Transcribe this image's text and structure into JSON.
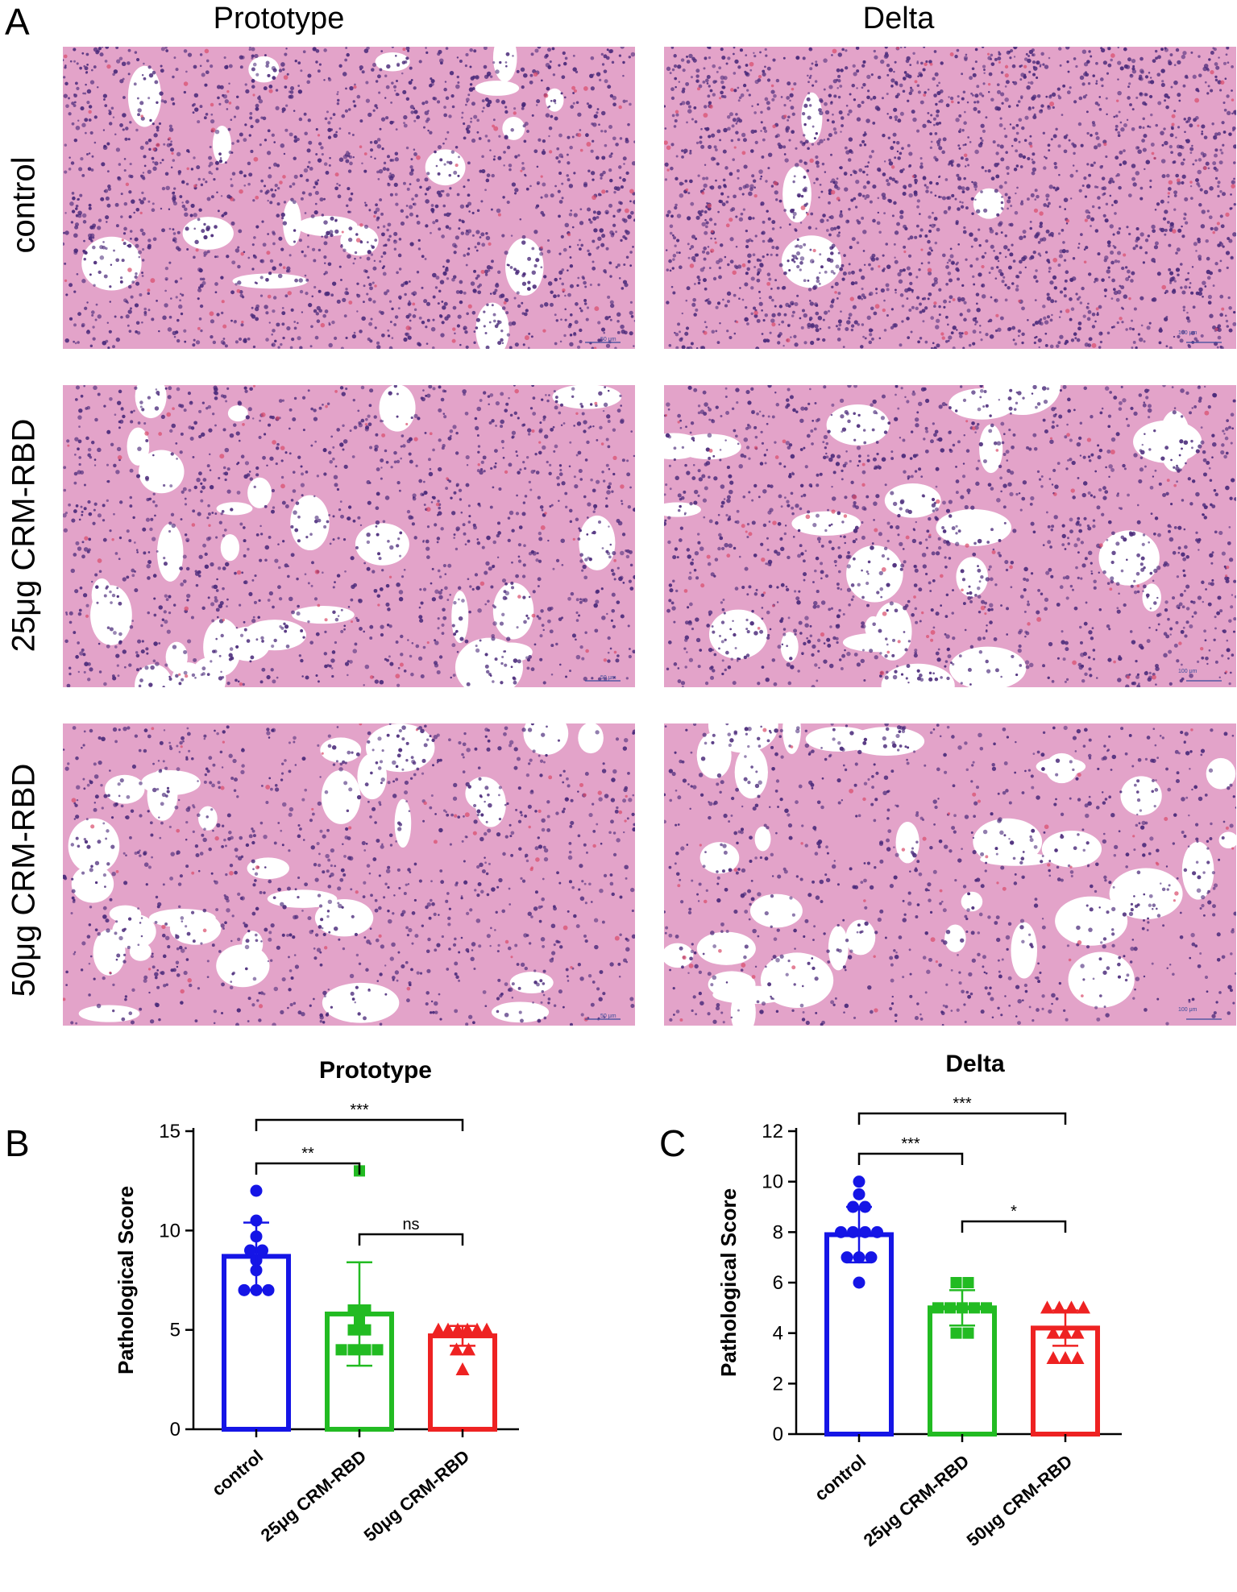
{
  "panels": {
    "a_letter": "A",
    "b_letter": "B",
    "c_letter": "C"
  },
  "columns": [
    "Prototype",
    "Delta"
  ],
  "rows": [
    "control",
    "25μg CRM-RBD",
    "50μg CRM-RBD"
  ],
  "scale_bars": {
    "prototype": "50 μm",
    "delta": "100 μm"
  },
  "micrographs": [
    {
      "name": "prototype-control",
      "density": 0.78,
      "voids": 0.28,
      "seed": 11
    },
    {
      "name": "delta-control",
      "density": 0.95,
      "voids": 0.07,
      "seed": 23
    },
    {
      "name": "prototype-25ug",
      "density": 0.55,
      "voids": 0.45,
      "seed": 37
    },
    {
      "name": "delta-25ug",
      "density": 0.6,
      "voids": 0.38,
      "seed": 41
    },
    {
      "name": "prototype-50ug",
      "density": 0.45,
      "voids": 0.5,
      "seed": 53
    },
    {
      "name": "delta-50ug",
      "density": 0.38,
      "voids": 0.55,
      "seed": 67
    }
  ],
  "colors": {
    "control": "#1515e6",
    "dose25": "#22bb22",
    "dose50": "#ee2222",
    "tissue_pink": "#e3a3c9",
    "tissue_purple": "#4a2a7a",
    "rbc": "#d94a6a"
  },
  "chart_data": [
    {
      "type": "bar",
      "title": "Prototype",
      "ylabel": "Pathological Score",
      "xlabel": "",
      "categories": [
        "control",
        "25μg CRM-RBD",
        "50μg CRM-RBD"
      ],
      "values": [
        8.7,
        5.8,
        4.7
      ],
      "sd": [
        1.7,
        2.6,
        0.5
      ],
      "points": [
        [
          12,
          10.5,
          9.7,
          9,
          9,
          8.5,
          8,
          7,
          7,
          7
        ],
        [
          13,
          6,
          6,
          5.5,
          5,
          5,
          4,
          4,
          4,
          4
        ],
        [
          5,
          5,
          5,
          5,
          5,
          5,
          4,
          4,
          3
        ]
      ],
      "markers": [
        "circle",
        "square",
        "triangle"
      ],
      "ylim": [
        0,
        15
      ],
      "yticks": [
        0,
        5,
        10,
        15
      ],
      "significance": [
        {
          "from": 0,
          "to": 1,
          "label": "**"
        },
        {
          "from": 0,
          "to": 2,
          "label": "***"
        },
        {
          "from": 1,
          "to": 2,
          "label": "ns"
        }
      ]
    },
    {
      "type": "bar",
      "title": "Delta",
      "ylabel": "Pathological Score",
      "xlabel": "",
      "categories": [
        "control",
        "25μg CRM-RBD",
        "50μg CRM-RBD"
      ],
      "values": [
        7.9,
        5.0,
        4.2
      ],
      "sd": [
        1.1,
        0.7,
        0.7
      ],
      "points": [
        [
          10,
          9.5,
          9,
          9,
          8,
          8,
          8,
          8,
          7,
          7,
          7,
          6
        ],
        [
          6,
          6,
          5,
          5,
          5,
          5,
          5,
          4,
          4
        ],
        [
          5,
          5,
          5,
          5,
          4,
          4,
          4,
          3,
          3,
          3
        ]
      ],
      "markers": [
        "circle",
        "square",
        "triangle"
      ],
      "ylim": [
        0,
        12
      ],
      "yticks": [
        0,
        2,
        4,
        6,
        8,
        10,
        12
      ],
      "significance": [
        {
          "from": 0,
          "to": 1,
          "label": "***"
        },
        {
          "from": 0,
          "to": 2,
          "label": "***"
        },
        {
          "from": 1,
          "to": 2,
          "label": "*"
        }
      ]
    }
  ]
}
